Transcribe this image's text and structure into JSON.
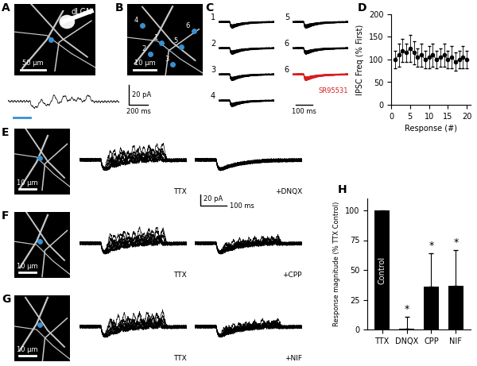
{
  "panels": {
    "A": {
      "letter": "A",
      "region": "dLGN",
      "scale_bar": "50 µm",
      "trace_scale": {
        "current": "20 pA",
        "time": "200 ms"
      }
    },
    "B": {
      "letter": "B",
      "scale_bar": "10 µm",
      "sites": [
        "1",
        "2",
        "3",
        "4",
        "5",
        "6"
      ]
    },
    "C": {
      "letter": "C",
      "traces": [
        "1",
        "2",
        "3",
        "4",
        "5",
        "6",
        "6"
      ],
      "trace_colors": [
        "#000000",
        "#000000",
        "#000000",
        "#000000",
        "#000000",
        "#000000",
        "#d62020"
      ],
      "blocker": "SR95531",
      "time_scale": "100 ms"
    },
    "D": {
      "letter": "D"
    },
    "E": {
      "letter": "E",
      "scale_bar": "10 µm",
      "conditions": [
        "TTX",
        "+DNQX"
      ],
      "trace_scale": {
        "current": "20 pA",
        "time": "100 ms"
      }
    },
    "F": {
      "letter": "F",
      "scale_bar": "10 µm",
      "conditions": [
        "TTX",
        "+CPP"
      ]
    },
    "G": {
      "letter": "G",
      "scale_bar": "10 µm",
      "conditions": [
        "TTX",
        "+NIF"
      ]
    },
    "H": {
      "letter": "H"
    }
  },
  "chart_data": [
    {
      "type": "line",
      "x": [
        1,
        2,
        3,
        4,
        5,
        6,
        7,
        8,
        9,
        10,
        11,
        12,
        13,
        14,
        15,
        16,
        17,
        18,
        19,
        20
      ],
      "values": [
        100,
        110,
        120,
        115,
        125,
        115,
        105,
        110,
        100,
        105,
        110,
        100,
        105,
        110,
        100,
        105,
        95,
        100,
        105,
        100
      ],
      "errors": [
        20,
        25,
        25,
        20,
        30,
        25,
        20,
        25,
        20,
        25,
        25,
        20,
        20,
        25,
        20,
        25,
        20,
        20,
        25,
        20
      ],
      "marker": "o",
      "color": "#000000",
      "xlabel": "Response (#)",
      "ylabel": "IPSC Freq (% First)",
      "xlim": [
        0,
        21
      ],
      "ylim": [
        0,
        200
      ],
      "xticks": [
        0,
        5,
        10,
        15,
        20
      ],
      "yticks": [
        0,
        50,
        100,
        150,
        200
      ]
    },
    {
      "type": "bar",
      "categories": [
        "TTX",
        "DNQX",
        "CPP",
        "NIF"
      ],
      "values": [
        100,
        1,
        36,
        37
      ],
      "errors": [
        null,
        10,
        28,
        30
      ],
      "color": "#000000",
      "bar_labels": [
        "Control",
        null,
        null,
        null
      ],
      "significance": [
        null,
        "*",
        "*",
        "*"
      ],
      "ylabel": "Response magnitude (% TTX Control)",
      "ylim": [
        0,
        110
      ],
      "yticks": [
        0,
        25,
        50,
        75,
        100
      ]
    }
  ]
}
